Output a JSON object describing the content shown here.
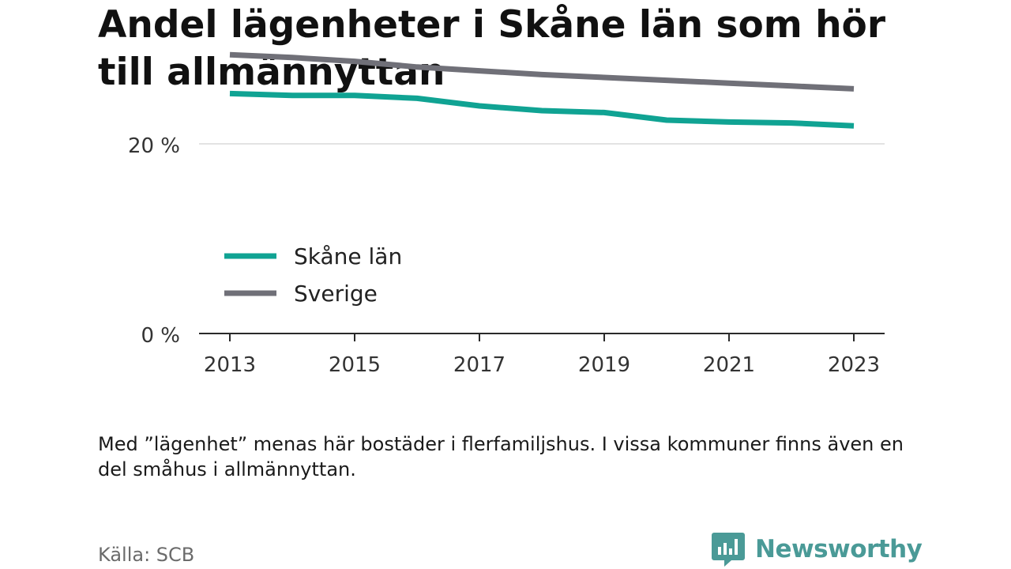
{
  "title": "Andel lägenheter i Skåne län som hör till allmännyttan",
  "footnote": "Med ”lägenhet” menas här bostäder i flerfamiljshus. I vissa kommuner finns även en del småhus i allmännyttan.",
  "source": "Källa: SCB",
  "brand": {
    "name": "Newsworthy",
    "color": "#4a9a97"
  },
  "chart_data": {
    "type": "line",
    "title": "Andel lägenheter i Skåne län som hör till allmännyttan",
    "xlabel": "",
    "ylabel": "",
    "x": [
      2013,
      2014,
      2015,
      2016,
      2017,
      2018,
      2019,
      2020,
      2021,
      2022,
      2023
    ],
    "xticks": [
      2013,
      2015,
      2017,
      2019,
      2021,
      2023
    ],
    "yticks": [
      {
        "value": 0,
        "label": "0 %"
      },
      {
        "value": 20,
        "label": "20 %"
      }
    ],
    "ylim": [
      0,
      30
    ],
    "grid": true,
    "legend": "inside-left",
    "series": [
      {
        "name": "Skåne län",
        "color": "#10a393",
        "values": [
          25.3,
          25.1,
          25.1,
          24.8,
          24.0,
          23.5,
          23.3,
          22.5,
          22.3,
          22.2,
          21.9
        ]
      },
      {
        "name": "Sverige",
        "color": "#707078",
        "values": [
          29.4,
          29.1,
          28.7,
          28.1,
          27.7,
          27.3,
          27.0,
          26.7,
          26.4,
          26.1,
          25.8
        ]
      }
    ]
  }
}
